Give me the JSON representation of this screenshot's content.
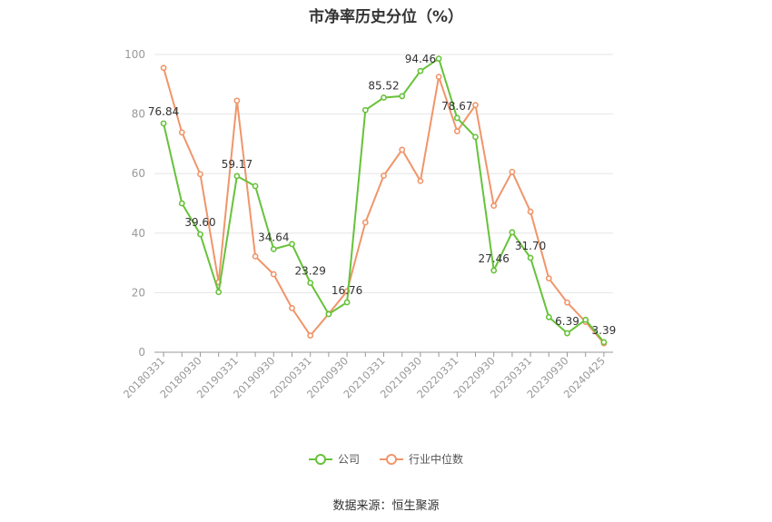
{
  "chart_data": {
    "type": "line",
    "title": "市净率历史分位（%）",
    "x": [
      "20180331",
      "",
      "20180930",
      "",
      "20190331",
      "",
      "20190930",
      "",
      "20200331",
      "",
      "20200930",
      "",
      "20210331",
      "",
      "20210930",
      "",
      "20220331",
      "",
      "20220930",
      "",
      "20230331",
      "",
      "20230930",
      "",
      "20240425"
    ],
    "series": [
      {
        "name": "公司",
        "color": "#67c23a",
        "values": [
          76.84,
          50.0,
          39.6,
          20.2,
          59.17,
          55.8,
          34.64,
          36.3,
          23.29,
          12.8,
          16.76,
          81.3,
          85.52,
          86.0,
          94.46,
          98.6,
          78.67,
          72.3,
          27.46,
          40.3,
          31.7,
          11.8,
          6.39,
          10.9,
          3.39
        ],
        "labels": [
          "76.84",
          "",
          "39.60",
          "",
          "59.17",
          "",
          "34.64",
          "",
          "23.29",
          "",
          "16.76",
          "",
          "85.52",
          "",
          "94.46",
          "",
          "78.67",
          "",
          "27.46",
          "",
          "31.70",
          "",
          "6.39",
          "",
          "3.39"
        ]
      },
      {
        "name": "行业中位数",
        "color": "#f0956a",
        "values": [
          95.5,
          73.8,
          59.8,
          23.5,
          84.5,
          32.2,
          26.2,
          14.8,
          5.6,
          12.9,
          20.5,
          43.6,
          59.3,
          68.0,
          57.5,
          92.5,
          74.2,
          83.0,
          49.2,
          60.6,
          47.2,
          24.8,
          16.7,
          10.2,
          3.0
        ]
      }
    ],
    "xlabels_full": [
      "20180331",
      "20180930",
      "20190331",
      "20190930",
      "20200331",
      "20200930",
      "20210331",
      "20210930",
      "20220331",
      "20220930",
      "20230331",
      "20230930",
      "20240425"
    ],
    "ylim": [
      0,
      100
    ],
    "yticks": [
      0,
      20,
      40,
      60,
      80,
      100
    ],
    "grid": true,
    "legend": "bottom",
    "source": "数据来源：恒生聚源"
  }
}
